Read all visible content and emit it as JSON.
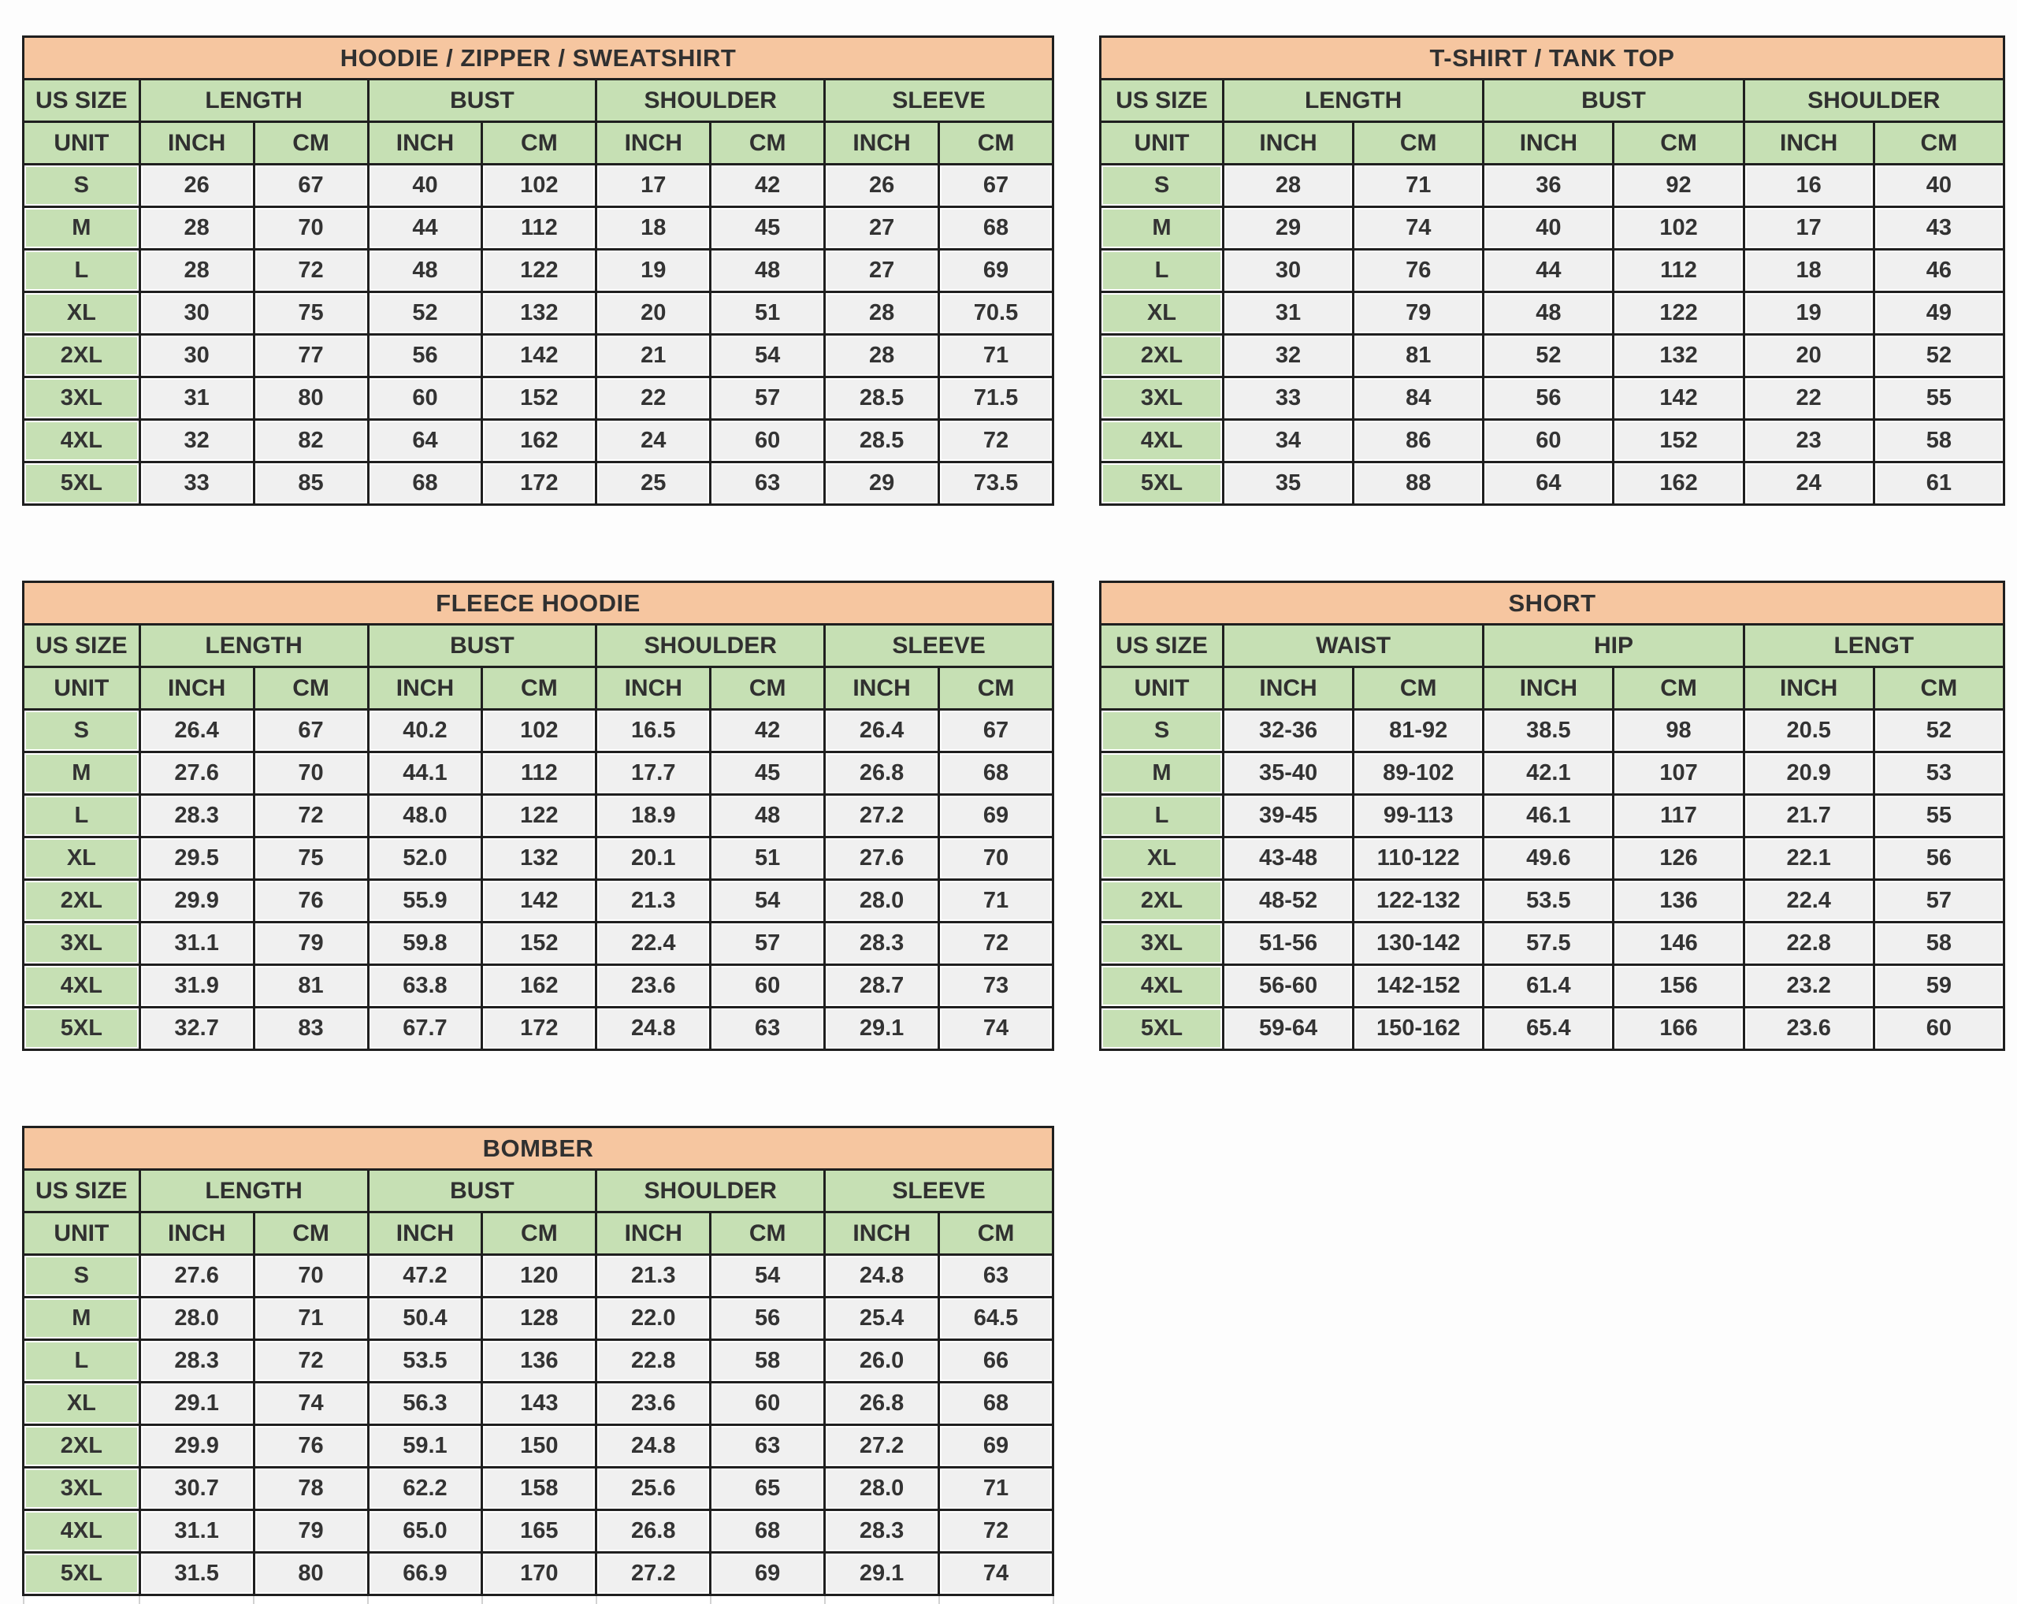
{
  "colors": {
    "title_bg": "#f6c6a0",
    "header_bg": "#c6e0b4",
    "cell_bg": "#f0f0f0",
    "border": "#1f1f1f",
    "text": "#333333"
  },
  "labels": {
    "us_size": "US SIZE",
    "unit": "UNIT",
    "inch": "INCH",
    "cm": "CM"
  },
  "tables": [
    {
      "id": "hoodie-zipper-sweatshirt",
      "title": "HOODIE / ZIPPER / SWEATSHIRT",
      "measures": [
        "LENGTH",
        "BUST",
        "SHOULDER",
        "SLEEVE"
      ],
      "trailing_empty_row": false,
      "rows": [
        {
          "size": "S",
          "values": [
            "26",
            "67",
            "40",
            "102",
            "17",
            "42",
            "26",
            "67"
          ]
        },
        {
          "size": "M",
          "values": [
            "28",
            "70",
            "44",
            "112",
            "18",
            "45",
            "27",
            "68"
          ]
        },
        {
          "size": "L",
          "values": [
            "28",
            "72",
            "48",
            "122",
            "19",
            "48",
            "27",
            "69"
          ]
        },
        {
          "size": "XL",
          "values": [
            "30",
            "75",
            "52",
            "132",
            "20",
            "51",
            "28",
            "70.5"
          ]
        },
        {
          "size": "2XL",
          "values": [
            "30",
            "77",
            "56",
            "142",
            "21",
            "54",
            "28",
            "71"
          ]
        },
        {
          "size": "3XL",
          "values": [
            "31",
            "80",
            "60",
            "152",
            "22",
            "57",
            "28.5",
            "71.5"
          ]
        },
        {
          "size": "4XL",
          "values": [
            "32",
            "82",
            "64",
            "162",
            "24",
            "60",
            "28.5",
            "72"
          ]
        },
        {
          "size": "5XL",
          "values": [
            "33",
            "85",
            "68",
            "172",
            "25",
            "63",
            "29",
            "73.5"
          ]
        }
      ]
    },
    {
      "id": "tshirt-tank-top",
      "title": "T-SHIRT / TANK TOP",
      "measures": [
        "LENGTH",
        "BUST",
        "SHOULDER"
      ],
      "trailing_empty_row": false,
      "rows": [
        {
          "size": "S",
          "values": [
            "28",
            "71",
            "36",
            "92",
            "16",
            "40"
          ]
        },
        {
          "size": "M",
          "values": [
            "29",
            "74",
            "40",
            "102",
            "17",
            "43"
          ]
        },
        {
          "size": "L",
          "values": [
            "30",
            "76",
            "44",
            "112",
            "18",
            "46"
          ]
        },
        {
          "size": "XL",
          "values": [
            "31",
            "79",
            "48",
            "122",
            "19",
            "49"
          ]
        },
        {
          "size": "2XL",
          "values": [
            "32",
            "81",
            "52",
            "132",
            "20",
            "52"
          ]
        },
        {
          "size": "3XL",
          "values": [
            "33",
            "84",
            "56",
            "142",
            "22",
            "55"
          ]
        },
        {
          "size": "4XL",
          "values": [
            "34",
            "86",
            "60",
            "152",
            "23",
            "58"
          ]
        },
        {
          "size": "5XL",
          "values": [
            "35",
            "88",
            "64",
            "162",
            "24",
            "61"
          ]
        }
      ]
    },
    {
      "id": "fleece-hoodie",
      "title": "FLEECE HOODIE",
      "measures": [
        "LENGTH",
        "BUST",
        "SHOULDER",
        "SLEEVE"
      ],
      "trailing_empty_row": false,
      "rows": [
        {
          "size": "S",
          "values": [
            "26.4",
            "67",
            "40.2",
            "102",
            "16.5",
            "42",
            "26.4",
            "67"
          ]
        },
        {
          "size": "M",
          "values": [
            "27.6",
            "70",
            "44.1",
            "112",
            "17.7",
            "45",
            "26.8",
            "68"
          ]
        },
        {
          "size": "L",
          "values": [
            "28.3",
            "72",
            "48.0",
            "122",
            "18.9",
            "48",
            "27.2",
            "69"
          ]
        },
        {
          "size": "XL",
          "values": [
            "29.5",
            "75",
            "52.0",
            "132",
            "20.1",
            "51",
            "27.6",
            "70"
          ]
        },
        {
          "size": "2XL",
          "values": [
            "29.9",
            "76",
            "55.9",
            "142",
            "21.3",
            "54",
            "28.0",
            "71"
          ]
        },
        {
          "size": "3XL",
          "values": [
            "31.1",
            "79",
            "59.8",
            "152",
            "22.4",
            "57",
            "28.3",
            "72"
          ]
        },
        {
          "size": "4XL",
          "values": [
            "31.9",
            "81",
            "63.8",
            "162",
            "23.6",
            "60",
            "28.7",
            "73"
          ]
        },
        {
          "size": "5XL",
          "values": [
            "32.7",
            "83",
            "67.7",
            "172",
            "24.8",
            "63",
            "29.1",
            "74"
          ]
        }
      ]
    },
    {
      "id": "short",
      "title": "SHORT",
      "measures": [
        "WAIST",
        "HIP",
        "LENGT"
      ],
      "trailing_empty_row": false,
      "rows": [
        {
          "size": "S",
          "values": [
            "32-36",
            "81-92",
            "38.5",
            "98",
            "20.5",
            "52"
          ]
        },
        {
          "size": "M",
          "values": [
            "35-40",
            "89-102",
            "42.1",
            "107",
            "20.9",
            "53"
          ]
        },
        {
          "size": "L",
          "values": [
            "39-45",
            "99-113",
            "46.1",
            "117",
            "21.7",
            "55"
          ]
        },
        {
          "size": "XL",
          "values": [
            "43-48",
            "110-122",
            "49.6",
            "126",
            "22.1",
            "56"
          ]
        },
        {
          "size": "2XL",
          "values": [
            "48-52",
            "122-132",
            "53.5",
            "136",
            "22.4",
            "57"
          ]
        },
        {
          "size": "3XL",
          "values": [
            "51-56",
            "130-142",
            "57.5",
            "146",
            "22.8",
            "58"
          ]
        },
        {
          "size": "4XL",
          "values": [
            "56-60",
            "142-152",
            "61.4",
            "156",
            "23.2",
            "59"
          ]
        },
        {
          "size": "5XL",
          "values": [
            "59-64",
            "150-162",
            "65.4",
            "166",
            "23.6",
            "60"
          ]
        }
      ]
    },
    {
      "id": "bomber",
      "title": "BOMBER",
      "measures": [
        "LENGTH",
        "BUST",
        "SHOULDER",
        "SLEEVE"
      ],
      "trailing_empty_row": true,
      "rows": [
        {
          "size": "S",
          "values": [
            "27.6",
            "70",
            "47.2",
            "120",
            "21.3",
            "54",
            "24.8",
            "63"
          ]
        },
        {
          "size": "M",
          "values": [
            "28.0",
            "71",
            "50.4",
            "128",
            "22.0",
            "56",
            "25.4",
            "64.5"
          ]
        },
        {
          "size": "L",
          "values": [
            "28.3",
            "72",
            "53.5",
            "136",
            "22.8",
            "58",
            "26.0",
            "66"
          ]
        },
        {
          "size": "XL",
          "values": [
            "29.1",
            "74",
            "56.3",
            "143",
            "23.6",
            "60",
            "26.8",
            "68"
          ]
        },
        {
          "size": "2XL",
          "values": [
            "29.9",
            "76",
            "59.1",
            "150",
            "24.8",
            "63",
            "27.2",
            "69"
          ]
        },
        {
          "size": "3XL",
          "values": [
            "30.7",
            "78",
            "62.2",
            "158",
            "25.6",
            "65",
            "28.0",
            "71"
          ]
        },
        {
          "size": "4XL",
          "values": [
            "31.1",
            "79",
            "65.0",
            "165",
            "26.8",
            "68",
            "28.3",
            "72"
          ]
        },
        {
          "size": "5XL",
          "values": [
            "31.5",
            "80",
            "66.9",
            "170",
            "27.2",
            "69",
            "29.1",
            "74"
          ]
        }
      ]
    }
  ]
}
